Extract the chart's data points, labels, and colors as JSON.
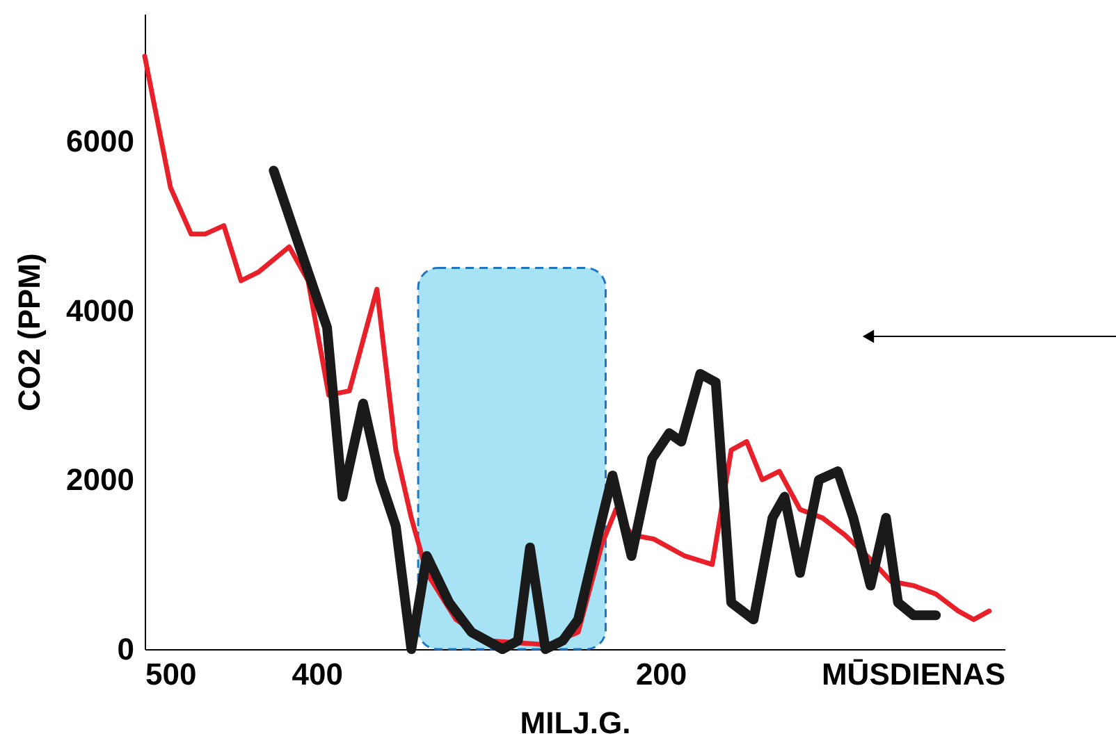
{
  "chart_data": {
    "type": "line",
    "xlabel": "MILJ.G.",
    "ylabel": "CO2 (PPM)",
    "xlim": [
      500,
      0
    ],
    "xticks": [
      500,
      400,
      200,
      {
        "value": 0,
        "label": "MŪSDIENAS"
      }
    ],
    "ylim": [
      0,
      7500
    ],
    "yticks": [
      0,
      2000,
      4000,
      6000
    ],
    "grid": false,
    "marker": "none",
    "line_style": "solid",
    "bands": [
      {
        "axis": "x",
        "from": 341,
        "to": 232,
        "color": "#a8e2f5"
      }
    ],
    "series": [
      {
        "color": "#e8202a",
        "x": [
          500,
          485,
          473,
          465,
          454,
          444,
          434,
          416,
          405,
          393,
          381,
          365,
          354,
          345,
          336,
          319,
          301,
          265,
          248,
          234,
          226,
          217,
          204,
          186,
          170,
          159,
          150,
          141,
          131,
          119,
          106,
          93,
          80,
          66,
          53,
          40,
          27,
          18,
          9
        ],
        "values": [
          7000,
          5450,
          4900,
          4900,
          5000,
          4350,
          4450,
          4750,
          4350,
          3000,
          3050,
          4250,
          2350,
          1550,
          900,
          350,
          100,
          50,
          200,
          1250,
          1650,
          1350,
          1300,
          1100,
          1000,
          2350,
          2450,
          2000,
          2100,
          1650,
          1550,
          1350,
          1100,
          800,
          750,
          650,
          450,
          350,
          450
        ]
      },
      {
        "color": "#1a1a1a",
        "x": [
          425,
          405,
          394,
          385,
          373,
          363,
          354,
          345,
          336,
          323,
          310,
          292,
          283,
          276,
          267,
          257,
          248,
          234,
          228,
          217,
          205,
          195,
          188,
          177,
          168,
          159,
          146,
          135,
          128,
          119,
          108,
          97,
          88,
          78,
          69,
          62,
          53,
          40
        ],
        "values": [
          5650,
          4450,
          3800,
          1800,
          2900,
          2000,
          1450,
          0,
          1100,
          550,
          200,
          0,
          100,
          1200,
          0,
          100,
          350,
          1550,
          2050,
          1100,
          2250,
          2550,
          2450,
          3250,
          3150,
          550,
          350,
          1550,
          1800,
          900,
          2000,
          2100,
          1550,
          750,
          1550,
          550,
          400,
          400
        ]
      }
    ]
  }
}
